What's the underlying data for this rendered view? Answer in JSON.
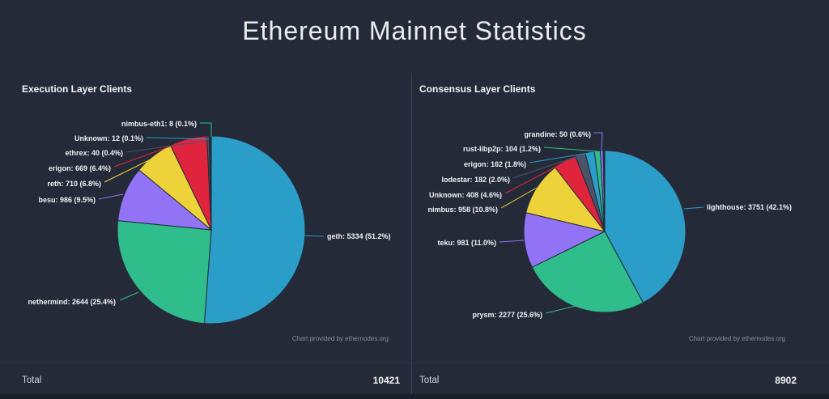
{
  "title": "Ethereum Mainnet Statistics",
  "colors": {
    "background": "#242a38",
    "divider": "#3d4264",
    "bottom_strip": "#1a1e29",
    "label_text": "#f0f1f5",
    "palette": [
      "#2b9dc9",
      "#2ebd8b",
      "#9273f5",
      "#edd339",
      "#e0243e",
      "#4a5466"
    ]
  },
  "sections": [
    {
      "heading": "Execution Layer Clients",
      "credit": "Chart provided by ethernodes.org",
      "total_label": "Total",
      "total_value": "10421"
    },
    {
      "heading": "Consensus Layer Clients",
      "credit": "Chart provided by ethernodes.org",
      "total_label": "Total",
      "total_value": "8902"
    }
  ],
  "chart_data": [
    {
      "type": "pie",
      "title": "Execution Layer Clients",
      "total": 10421,
      "start_angle": 0,
      "direction": "clockwise",
      "legend_position": "none",
      "label_format": "{name}: {value} ({pct}%)",
      "slices": [
        {
          "name": "geth",
          "value": 5334,
          "pct": "51.2",
          "color": "#2b9dc9"
        },
        {
          "name": "nethermind",
          "value": 2644,
          "pct": "25.4",
          "color": "#2ebd8b"
        },
        {
          "name": "besu",
          "value": 986,
          "pct": "9.5",
          "color": "#9273f5"
        },
        {
          "name": "reth",
          "value": 710,
          "pct": "6.8",
          "color": "#edd339"
        },
        {
          "name": "erigon",
          "value": 669,
          "pct": "6.4",
          "color": "#e0243e"
        },
        {
          "name": "ethrex",
          "value": 40,
          "pct": "0.4",
          "color": "#4a5466"
        },
        {
          "name": "Unknown",
          "value": 12,
          "pct": "0.1",
          "color": "#2b9dc9"
        },
        {
          "name": "nimbus-eth1",
          "value": 8,
          "pct": "0.1",
          "color": "#2ebd8b"
        }
      ]
    },
    {
      "type": "pie",
      "title": "Consensus Layer Clients",
      "total": 8902,
      "start_angle": 0,
      "direction": "clockwise",
      "legend_position": "none",
      "label_format": "{name}: {value} ({pct}%)",
      "slices": [
        {
          "name": "lighthouse",
          "value": 3751,
          "pct": "42.1",
          "color": "#2b9dc9"
        },
        {
          "name": "prysm",
          "value": 2277,
          "pct": "25.6",
          "color": "#2ebd8b"
        },
        {
          "name": "teku",
          "value": 981,
          "pct": "11.0",
          "color": "#9273f5"
        },
        {
          "name": "nimbus",
          "value": 958,
          "pct": "10.8",
          "color": "#edd339"
        },
        {
          "name": "Unknown",
          "value": 408,
          "pct": "4.6",
          "color": "#e0243e"
        },
        {
          "name": "lodestar",
          "value": 182,
          "pct": "2.0",
          "color": "#4a5466"
        },
        {
          "name": "erigon",
          "value": 162,
          "pct": "1.8",
          "color": "#2b9dc9"
        },
        {
          "name": "rust-libp2p",
          "value": 104,
          "pct": "1.2",
          "color": "#2ebd8b"
        },
        {
          "name": "grandine",
          "value": 50,
          "pct": "0.6",
          "color": "#9273f5"
        }
      ]
    }
  ]
}
